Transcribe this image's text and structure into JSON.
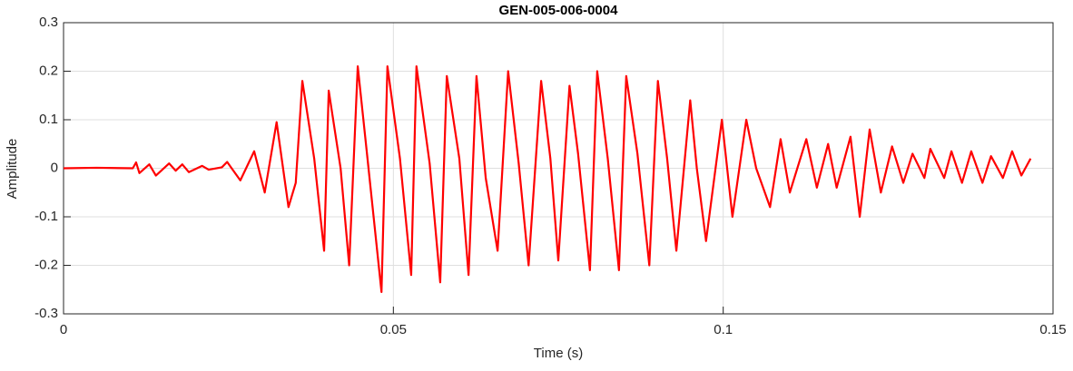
{
  "chart_data": {
    "type": "line",
    "title": "GEN-005-006-0004",
    "x_label": "Time (s)",
    "y_label": "Amplitude",
    "xlim": [
      0,
      0.15
    ],
    "xticks": [
      0,
      0.05,
      0.1,
      0.15
    ],
    "ylim": [
      -0.3,
      0.3
    ],
    "yticks": [
      -0.3,
      -0.2,
      -0.1,
      0,
      0.1,
      0.2,
      0.3
    ],
    "grid": true,
    "x": [
      0,
      0.005,
      0.0105,
      0.011,
      0.0115,
      0.013,
      0.014,
      0.016,
      0.017,
      0.018,
      0.019,
      0.021,
      0.022,
      0.024,
      0.0248,
      0.0268,
      0.0289,
      0.0305,
      0.0323,
      0.0341,
      0.0352,
      0.0362,
      0.038,
      0.0395,
      0.0402,
      0.042,
      0.0433,
      0.0446,
      0.046,
      0.0482,
      0.0491,
      0.051,
      0.0527,
      0.0535,
      0.0555,
      0.0571,
      0.0581,
      0.06,
      0.0614,
      0.0626,
      0.064,
      0.0658,
      0.0674,
      0.069,
      0.0705,
      0.0724,
      0.0738,
      0.075,
      0.0767,
      0.078,
      0.0798,
      0.0809,
      0.0825,
      0.0842,
      0.0853,
      0.087,
      0.0888,
      0.0901,
      0.0915,
      0.0929,
      0.095,
      0.096,
      0.0974,
      0.0998,
      0.1014,
      0.1035,
      0.105,
      0.1071,
      0.1087,
      0.1101,
      0.1126,
      0.1142,
      0.1159,
      0.1172,
      0.1193,
      0.1207,
      0.1222,
      0.1239,
      0.1256,
      0.1273,
      0.1287,
      0.1305,
      0.1314,
      0.1335,
      0.1346,
      0.1362,
      0.1376,
      0.1393,
      0.1406,
      0.1424,
      0.1438,
      0.1452,
      0.1466
    ],
    "series": [
      {
        "color": "#ff0000",
        "values": [
          0,
          0.001,
          0,
          0.012,
          -0.01,
          0.008,
          -0.015,
          0.01,
          -0.005,
          0.008,
          -0.008,
          0.005,
          -0.003,
          0.002,
          0.013,
          -0.025,
          0.035,
          -0.05,
          0.095,
          -0.08,
          -0.03,
          0.18,
          0.02,
          -0.17,
          0.16,
          0.0,
          -0.2,
          0.21,
          0.03,
          -0.255,
          0.21,
          0.02,
          -0.22,
          0.21,
          0.01,
          -0.235,
          0.19,
          0.02,
          -0.22,
          0.19,
          -0.02,
          -0.17,
          0.2,
          0.01,
          -0.2,
          0.18,
          0.02,
          -0.19,
          0.17,
          0.03,
          -0.21,
          0.2,
          0.02,
          -0.21,
          0.19,
          0.03,
          -0.2,
          0.18,
          0.02,
          -0.17,
          0.14,
          0.0,
          -0.15,
          0.1,
          -0.1,
          0.1,
          0.0,
          -0.08,
          0.06,
          -0.05,
          0.06,
          -0.04,
          0.05,
          -0.04,
          0.065,
          -0.1,
          0.08,
          -0.05,
          0.045,
          -0.03,
          0.03,
          -0.02,
          0.04,
          -0.02,
          0.035,
          -0.03,
          0.035,
          -0.03,
          0.025,
          -0.02,
          0.035,
          -0.015,
          0.02
        ]
      }
    ]
  }
}
